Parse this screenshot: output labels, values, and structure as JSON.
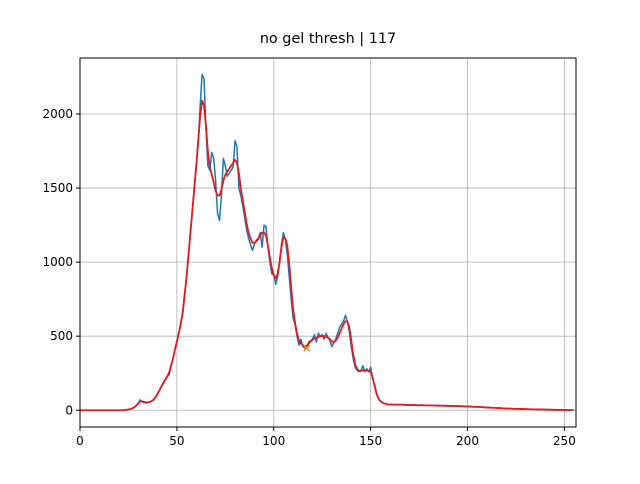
{
  "chart_data": {
    "type": "line",
    "title": "no gel thresh | 117",
    "xlim": [
      0,
      256
    ],
    "ylim": [
      -113,
      2378
    ],
    "xticks": [
      0,
      50,
      100,
      150,
      200,
      250
    ],
    "yticks": [
      0,
      500,
      1000,
      1500,
      2000
    ],
    "grid": true,
    "series": [
      {
        "color": "#1f77b4",
        "values": [
          0,
          0,
          0,
          0,
          0,
          0,
          0,
          0,
          0,
          0,
          0,
          0,
          0,
          0,
          0,
          0,
          0,
          0,
          0,
          0,
          0,
          0,
          1,
          2,
          3,
          5,
          8,
          12,
          20,
          30,
          45,
          70,
          60,
          52,
          50,
          52,
          55,
          62,
          70,
          88,
          110,
          135,
          160,
          185,
          210,
          225,
          240,
          300,
          350,
          410,
          460,
          520,
          580,
          650,
          780,
          900,
          1050,
          1200,
          1350,
          1500,
          1650,
          1800,
          2050,
          2265,
          2240,
          1900,
          1650,
          1620,
          1740,
          1700,
          1550,
          1330,
          1280,
          1450,
          1700,
          1650,
          1580,
          1600,
          1620,
          1640,
          1820,
          1780,
          1500,
          1450,
          1380,
          1300,
          1220,
          1160,
          1120,
          1080,
          1120,
          1150,
          1150,
          1200,
          1100,
          1250,
          1240,
          1100,
          1000,
          920,
          920,
          850,
          900,
          1000,
          1120,
          1200,
          1150,
          1050,
          900,
          750,
          620,
          580,
          500,
          440,
          480,
          430,
          420,
          430,
          460,
          470,
          480,
          510,
          460,
          520,
          500,
          510,
          480,
          520,
          490,
          470,
          430,
          460,
          480,
          520,
          560,
          580,
          600,
          640,
          600,
          530,
          430,
          350,
          290,
          270,
          260,
          270,
          300,
          260,
          280,
          260,
          290,
          220,
          170,
          110,
          80,
          60,
          50,
          45,
          42,
          40,
          38,
          40,
          37,
          39,
          36,
          38,
          40,
          35,
          37,
          36,
          34,
          36,
          35,
          37,
          33,
          35,
          36,
          34,
          32,
          35,
          33,
          34,
          32,
          33,
          31,
          33,
          32,
          30,
          31,
          32,
          30,
          31,
          29,
          30,
          28,
          30,
          29,
          27,
          28,
          27,
          26,
          25,
          27,
          24,
          23,
          25,
          22,
          21,
          23,
          20,
          19,
          20,
          18,
          17,
          18,
          16,
          15,
          16,
          14,
          13,
          12,
          12,
          11,
          11,
          10,
          10,
          9,
          9,
          9,
          8,
          8,
          8,
          7,
          7,
          7,
          6,
          6,
          6,
          5,
          5,
          5,
          4,
          4,
          4,
          3,
          3,
          3,
          3,
          2,
          2,
          2,
          2,
          2,
          1,
          1,
          1
        ]
      },
      {
        "color": "#e41a1c",
        "values": [
          0,
          0,
          0,
          0,
          0,
          0,
          0,
          0,
          0,
          0,
          0,
          0,
          0,
          0,
          0,
          0,
          0,
          0,
          0,
          0,
          0,
          0,
          1,
          2,
          3,
          5,
          8,
          13,
          20,
          32,
          45,
          58,
          60,
          56,
          53,
          53,
          56,
          62,
          72,
          88,
          110,
          135,
          160,
          183,
          205,
          228,
          255,
          300,
          350,
          410,
          465,
          520,
          585,
          660,
          780,
          900,
          1050,
          1200,
          1350,
          1500,
          1650,
          1820,
          1980,
          2090,
          2060,
          1920,
          1750,
          1640,
          1590,
          1540,
          1480,
          1450,
          1450,
          1490,
          1550,
          1590,
          1610,
          1630,
          1650,
          1670,
          1690,
          1670,
          1600,
          1500,
          1420,
          1340,
          1260,
          1200,
          1160,
          1130,
          1130,
          1140,
          1160,
          1180,
          1200,
          1200,
          1180,
          1110,
          1030,
          960,
          910,
          890,
          920,
          1000,
          1100,
          1170,
          1160,
          1110,
          990,
          830,
          680,
          590,
          520,
          470,
          450,
          440,
          430,
          435,
          450,
          465,
          475,
          485,
          490,
          495,
          500,
          500,
          500,
          495,
          490,
          480,
          465,
          460,
          470,
          490,
          520,
          550,
          580,
          600,
          600,
          560,
          470,
          380,
          310,
          280,
          265,
          265,
          270,
          270,
          270,
          265,
          260,
          220,
          170,
          115,
          82,
          62,
          52,
          46,
          42,
          40,
          39,
          39,
          38,
          38,
          38,
          38,
          37,
          37,
          36,
          36,
          35,
          35,
          35,
          35,
          34,
          34,
          34,
          34,
          33,
          33,
          33,
          32,
          32,
          32,
          32,
          31,
          31,
          31,
          30,
          30,
          30,
          29,
          29,
          28,
          28,
          28,
          27,
          27,
          26,
          26,
          25,
          25,
          24,
          23,
          23,
          22,
          22,
          21,
          20,
          19,
          19,
          18,
          17,
          17,
          16,
          15,
          15,
          14,
          13,
          12,
          12,
          11,
          11,
          10,
          10,
          9,
          9,
          9,
          8,
          8,
          8,
          7,
          7,
          7,
          6,
          6,
          6,
          5,
          5,
          5,
          4,
          4,
          4,
          3,
          3,
          3,
          3,
          2,
          2,
          2,
          2,
          2,
          1,
          1,
          1
        ]
      }
    ],
    "marker": {
      "x": 117,
      "y": 420,
      "color": "#ff7f0e"
    }
  }
}
